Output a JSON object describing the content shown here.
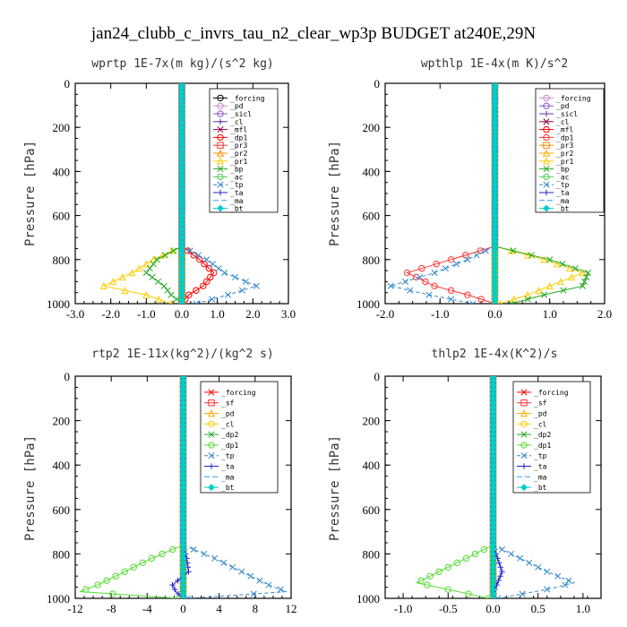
{
  "figure_title": "jan24_clubb_c_invrs_tau_n2_clear_wp3p  BUDGET at240E,29N",
  "chart_data": [
    {
      "type": "line",
      "title": "wprtp  1E-7x(m kg)/(s^2 kg)",
      "ylabel": "Pressure [hPa]",
      "xlim": [
        -3,
        3
      ],
      "ylim": [
        1000,
        0
      ],
      "xticks": [
        "-3.0",
        "-2.0",
        "-1.0",
        "0.0",
        "1.0",
        "2.0",
        "3.0"
      ],
      "yticks": [
        "0",
        "200",
        "400",
        "600",
        "800",
        "1000"
      ],
      "y": [
        740,
        800,
        860,
        920,
        960,
        1000
      ],
      "series": [
        {
          "name": "_forcing",
          "color": "#000000",
          "marker": "o",
          "dash": "",
          "values": [
            0,
            0,
            0,
            0,
            0,
            0
          ]
        },
        {
          "name": "_pd",
          "color": "#cc88cc",
          "marker": "o",
          "dash": "",
          "values": [
            0,
            0,
            0,
            0,
            0,
            0
          ]
        },
        {
          "name": "_sicl",
          "color": "#8855cc",
          "marker": "o",
          "dash": "",
          "values": [
            0,
            0,
            0,
            0,
            0,
            0
          ]
        },
        {
          "name": "_cl",
          "color": "#6633aa",
          "marker": "+",
          "dash": "",
          "values": [
            0,
            0,
            0,
            0,
            0,
            0
          ]
        },
        {
          "name": "_mfl",
          "color": "#990044",
          "marker": "x",
          "dash": "",
          "values": [
            0,
            0,
            0,
            0,
            0,
            0
          ]
        },
        {
          "name": "_dp1",
          "color": "#ff0000",
          "marker": "o",
          "dash": "",
          "values": [
            0,
            0.5,
            0.9,
            0.6,
            0.2,
            0
          ]
        },
        {
          "name": "_pr3",
          "color": "#ff3333",
          "marker": "s",
          "dash": "",
          "values": [
            0,
            0,
            0,
            0,
            0,
            0
          ]
        },
        {
          "name": "_pr2",
          "color": "#ff8800",
          "marker": "^",
          "dash": "",
          "values": [
            0,
            0,
            0,
            0,
            0,
            0
          ]
        },
        {
          "name": "_pr1",
          "color": "#ffcc00",
          "marker": "^",
          "dash": "",
          "values": [
            0,
            -0.8,
            -1.4,
            -2.2,
            -1.0,
            -0.3
          ]
        },
        {
          "name": "_bp",
          "color": "#22aa22",
          "marker": "x",
          "dash": "",
          "values": [
            0,
            -0.7,
            -1.0,
            -0.5,
            -0.3,
            0
          ]
        },
        {
          "name": "_ac",
          "color": "#55cc55",
          "marker": "o",
          "dash": "",
          "values": [
            0,
            0,
            0,
            0,
            0,
            0
          ]
        },
        {
          "name": "_tp",
          "color": "#3388cc",
          "marker": "x",
          "dash": "4,3",
          "values": [
            0,
            0.7,
            1.2,
            2.1,
            1.3,
            0.4
          ]
        },
        {
          "name": "_ta",
          "color": "#2222cc",
          "marker": "+",
          "dash": "",
          "values": [
            0,
            0,
            0,
            0,
            0,
            0
          ]
        },
        {
          "name": "_ma",
          "color": "#3399ff",
          "marker": "",
          "dash": "6,3",
          "values": [
            0,
            0,
            0,
            0,
            0,
            0
          ]
        },
        {
          "name": "_bt",
          "color": "#00cccc",
          "marker": "d",
          "dash": "",
          "values": [
            0,
            0,
            0,
            0,
            0,
            0
          ]
        }
      ]
    },
    {
      "type": "line",
      "title": "wpthlp  1E-4x(m K)/s^2",
      "ylabel": "Pressure [hPa]",
      "xlim": [
        -2,
        2
      ],
      "ylim": [
        1000,
        0
      ],
      "xticks": [
        "-2.0",
        "-1.0",
        "0.0",
        "1.0",
        "2.0"
      ],
      "yticks": [
        "0",
        "200",
        "400",
        "600",
        "800",
        "1000"
      ],
      "y": [
        740,
        800,
        860,
        920,
        960,
        1000
      ],
      "series": [
        {
          "name": "_forcing",
          "color": "#cc88cc",
          "marker": "o",
          "dash": "",
          "values": [
            0,
            0,
            0,
            0,
            0,
            0
          ]
        },
        {
          "name": "_pd",
          "color": "#8855cc",
          "marker": "o",
          "dash": "",
          "values": [
            0,
            0,
            0,
            0,
            0,
            0
          ]
        },
        {
          "name": "_sicl",
          "color": "#6633aa",
          "marker": "+",
          "dash": "",
          "values": [
            0,
            0,
            0,
            0,
            0,
            0
          ]
        },
        {
          "name": "_cl",
          "color": "#990044",
          "marker": "x",
          "dash": "",
          "values": [
            0,
            0,
            0,
            0,
            0,
            0
          ]
        },
        {
          "name": "_mfl",
          "color": "#ff0000",
          "marker": "o",
          "dash": "",
          "values": [
            0,
            0,
            0,
            0,
            0,
            0
          ]
        },
        {
          "name": "_dp1",
          "color": "#ff3333",
          "marker": "o",
          "dash": "",
          "values": [
            0,
            -0.8,
            -1.6,
            -1.1,
            -0.5,
            0
          ]
        },
        {
          "name": "_pr3",
          "color": "#ff8800",
          "marker": "s",
          "dash": "",
          "values": [
            0,
            0,
            0,
            0,
            0,
            0
          ]
        },
        {
          "name": "_pr2",
          "color": "#ffaa00",
          "marker": "^",
          "dash": "",
          "values": [
            0,
            0,
            0,
            0,
            0,
            0
          ]
        },
        {
          "name": "_pr1",
          "color": "#ffcc00",
          "marker": "^",
          "dash": "",
          "values": [
            0,
            0.9,
            1.6,
            1.0,
            0.6,
            0.1
          ]
        },
        {
          "name": "_bp",
          "color": "#22aa22",
          "marker": "x",
          "dash": "",
          "values": [
            0,
            1.0,
            1.7,
            1.6,
            0.9,
            0.3
          ]
        },
        {
          "name": "_ac",
          "color": "#55cc55",
          "marker": "o",
          "dash": "",
          "values": [
            0,
            0,
            0,
            0,
            0,
            0
          ]
        },
        {
          "name": "_tp",
          "color": "#3388cc",
          "marker": "x",
          "dash": "4,3",
          "values": [
            0,
            -0.5,
            -1.1,
            -1.9,
            -1.2,
            -0.4
          ]
        },
        {
          "name": "_ta",
          "color": "#2222cc",
          "marker": "+",
          "dash": "",
          "values": [
            0,
            0,
            0,
            0,
            0,
            0
          ]
        },
        {
          "name": "_ma",
          "color": "#3399ff",
          "marker": "",
          "dash": "6,3",
          "values": [
            0,
            0,
            0,
            0,
            0,
            0
          ]
        },
        {
          "name": "_bt",
          "color": "#00cccc",
          "marker": "d",
          "dash": "",
          "values": [
            0,
            0,
            0,
            0,
            0,
            0
          ]
        }
      ]
    },
    {
      "type": "line",
      "title": "rtp2  1E-11x(kg^2)/(kg^2 s)",
      "ylabel": "Pressure [hPa]",
      "xlim": [
        -12,
        12
      ],
      "ylim": [
        1000,
        0
      ],
      "xticks": [
        "-12",
        "-8",
        "-4",
        "0",
        "4",
        "8",
        "12"
      ],
      "yticks": [
        "0",
        "200",
        "400",
        "600",
        "800",
        "1000"
      ],
      "y": [
        760,
        820,
        880,
        940,
        970,
        1000
      ],
      "series": [
        {
          "name": "_forcing",
          "color": "#ff0000",
          "marker": "x",
          "dash": "",
          "values": [
            0,
            0,
            0,
            0,
            0,
            0
          ]
        },
        {
          "name": "_sf",
          "color": "#ff3333",
          "marker": "s",
          "dash": "",
          "values": [
            0,
            0,
            0,
            0,
            0,
            0
          ]
        },
        {
          "name": "_pd",
          "color": "#ffaa00",
          "marker": "^",
          "dash": "",
          "values": [
            0,
            0,
            0,
            0,
            0,
            0
          ]
        },
        {
          "name": "_cl",
          "color": "#ffcc00",
          "marker": "o",
          "dash": "",
          "values": [
            0,
            0,
            0,
            0,
            0,
            0
          ]
        },
        {
          "name": "_dp2",
          "color": "#22aa22",
          "marker": "x",
          "dash": "",
          "values": [
            0,
            0,
            0,
            0,
            0,
            0
          ]
        },
        {
          "name": "_dp1",
          "color": "#55dd33",
          "marker": "o",
          "dash": "",
          "values": [
            0,
            -3.5,
            -6.5,
            -9.5,
            -11.5,
            -0.5
          ]
        },
        {
          "name": "_tp",
          "color": "#3388cc",
          "marker": "x",
          "dash": "4,3",
          "values": [
            0,
            3.5,
            6.5,
            9.5,
            11.5,
            0.5
          ]
        },
        {
          "name": "_ta",
          "color": "#2222cc",
          "marker": "+",
          "dash": "",
          "values": [
            0,
            0.4,
            0.6,
            -1.2,
            -0.8,
            0
          ]
        },
        {
          "name": "_ma",
          "color": "#3399ff",
          "marker": "",
          "dash": "6,3",
          "values": [
            0,
            0,
            0,
            0,
            0,
            0
          ]
        },
        {
          "name": "_bt",
          "color": "#00cccc",
          "marker": "d",
          "dash": "",
          "values": [
            0,
            0,
            0,
            0,
            0,
            0
          ]
        }
      ]
    },
    {
      "type": "line",
      "title": "thlp2  1E-4x(K^2)/s",
      "ylabel": "Pressure [hPa]",
      "xlim": [
        -1.2,
        1.2
      ],
      "ylim": [
        1000,
        0
      ],
      "xticks": [
        "-1.0",
        "-0.5",
        "0.0",
        "0.5",
        "1.0"
      ],
      "yticks": [
        "0",
        "200",
        "400",
        "600",
        "800",
        "1000"
      ],
      "y": [
        760,
        820,
        880,
        930,
        960,
        1000
      ],
      "series": [
        {
          "name": "_forcing",
          "color": "#ff0000",
          "marker": "x",
          "dash": "",
          "values": [
            0,
            0,
            0,
            0,
            0,
            0
          ]
        },
        {
          "name": "_sf",
          "color": "#ff3333",
          "marker": "s",
          "dash": "",
          "values": [
            0,
            0,
            0,
            0,
            0,
            0
          ]
        },
        {
          "name": "_pd",
          "color": "#ffaa00",
          "marker": "^",
          "dash": "",
          "values": [
            0,
            0,
            0,
            0,
            0,
            0
          ]
        },
        {
          "name": "_cl",
          "color": "#ffcc00",
          "marker": "o",
          "dash": "",
          "values": [
            0,
            0,
            0,
            0,
            0,
            0
          ]
        },
        {
          "name": "_dp2",
          "color": "#22aa22",
          "marker": "x",
          "dash": "",
          "values": [
            0,
            0,
            0,
            0,
            0,
            0
          ]
        },
        {
          "name": "_dp1",
          "color": "#55dd33",
          "marker": "o",
          "dash": "",
          "values": [
            0,
            -0.3,
            -0.6,
            -0.85,
            -0.5,
            -0.05
          ]
        },
        {
          "name": "_tp",
          "color": "#3388cc",
          "marker": "x",
          "dash": "4,3",
          "values": [
            0,
            0.3,
            0.6,
            0.9,
            0.6,
            0.05
          ]
        },
        {
          "name": "_ta",
          "color": "#2222cc",
          "marker": "+",
          "dash": "",
          "values": [
            0,
            0.05,
            0.1,
            0.05,
            0.02,
            0
          ]
        },
        {
          "name": "_ma",
          "color": "#3399ff",
          "marker": "",
          "dash": "6,3",
          "values": [
            0,
            0,
            0,
            0,
            0,
            0
          ]
        },
        {
          "name": "_bt",
          "color": "#00cccc",
          "marker": "d",
          "dash": "",
          "values": [
            0,
            0,
            0,
            0,
            0,
            0
          ]
        }
      ]
    }
  ]
}
